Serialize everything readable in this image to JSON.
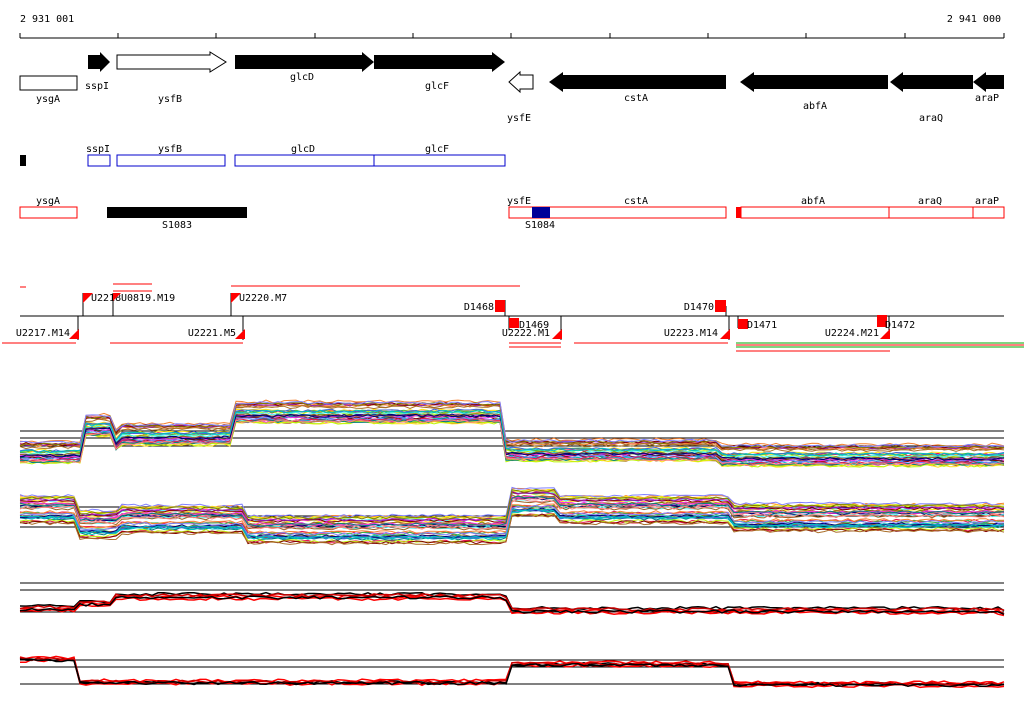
{
  "coordinates": {
    "start_label": "2 931 001",
    "end_label": "2 941 000"
  },
  "colors": {
    "black": "#000000",
    "red": "#ff0000",
    "blue": "#0000cc",
    "navy": "#000099",
    "green": "#00aa00",
    "gray": "#888888"
  },
  "genes": [
    {
      "name": "ysgA",
      "strand": "-",
      "fill": "white"
    },
    {
      "name": "sspI",
      "strand": "+",
      "fill": "black"
    },
    {
      "name": "ysfB",
      "strand": "+",
      "fill": "white"
    },
    {
      "name": "glcD",
      "strand": "+",
      "fill": "black"
    },
    {
      "name": "glcF",
      "strand": "+",
      "fill": "black"
    },
    {
      "name": "ysfE",
      "strand": "-",
      "fill": "white"
    },
    {
      "name": "cstA",
      "strand": "-",
      "fill": "black"
    },
    {
      "name": "abfA",
      "strand": "-",
      "fill": "black"
    },
    {
      "name": "araQ",
      "strand": "-",
      "fill": "black"
    },
    {
      "name": "araP",
      "strand": "-",
      "fill": "black"
    }
  ],
  "forward_operons": [
    "sspI",
    "ysfB",
    "glcD",
    "glcF"
  ],
  "reverse_operons": [
    "ysgA",
    "ysfE",
    "cstA",
    "abfA",
    "araQ",
    "araP"
  ],
  "segments": [
    "S1083",
    "S1084"
  ],
  "upper_features": [
    "U2218",
    "U0819.M19",
    "U2220.M7",
    "D1468",
    "D1470",
    "D1472"
  ],
  "lower_features": [
    "U2217.M14",
    "U2221.M5",
    "D1469",
    "U2222.M1",
    "U2223.M14",
    "D1471",
    "U2224.M21"
  ]
}
